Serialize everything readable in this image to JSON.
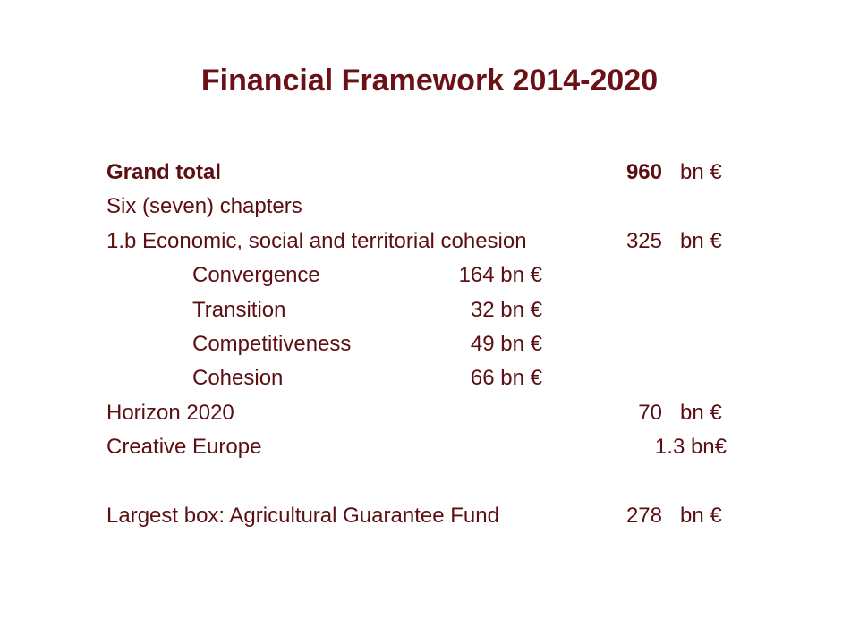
{
  "slide": {
    "title": "Financial Framework 2014-2020",
    "rows": [
      {
        "label": "Grand total",
        "amount": "960",
        "unit": "bn €"
      },
      {
        "label": "Six (seven) chapters"
      },
      {
        "label": "1.b Economic, social and territorial cohesion",
        "amount": "325",
        "unit": "bn €"
      },
      {
        "label": "Convergence",
        "amount": "164 bn €"
      },
      {
        "label": "Transition",
        "amount": "32 bn €"
      },
      {
        "label": "Competitiveness",
        "amount": "49 bn €"
      },
      {
        "label": "Cohesion",
        "amount": "66 bn €"
      },
      {
        "label": "Horizon 2020",
        "amount": "70",
        "unit": "bn €"
      },
      {
        "label": "Creative Europe",
        "amount": "1.3 bn€"
      },
      {
        "label": "Largest box: Agricultural Guarantee Fund",
        "amount": "278",
        "unit": "bn €"
      }
    ]
  }
}
